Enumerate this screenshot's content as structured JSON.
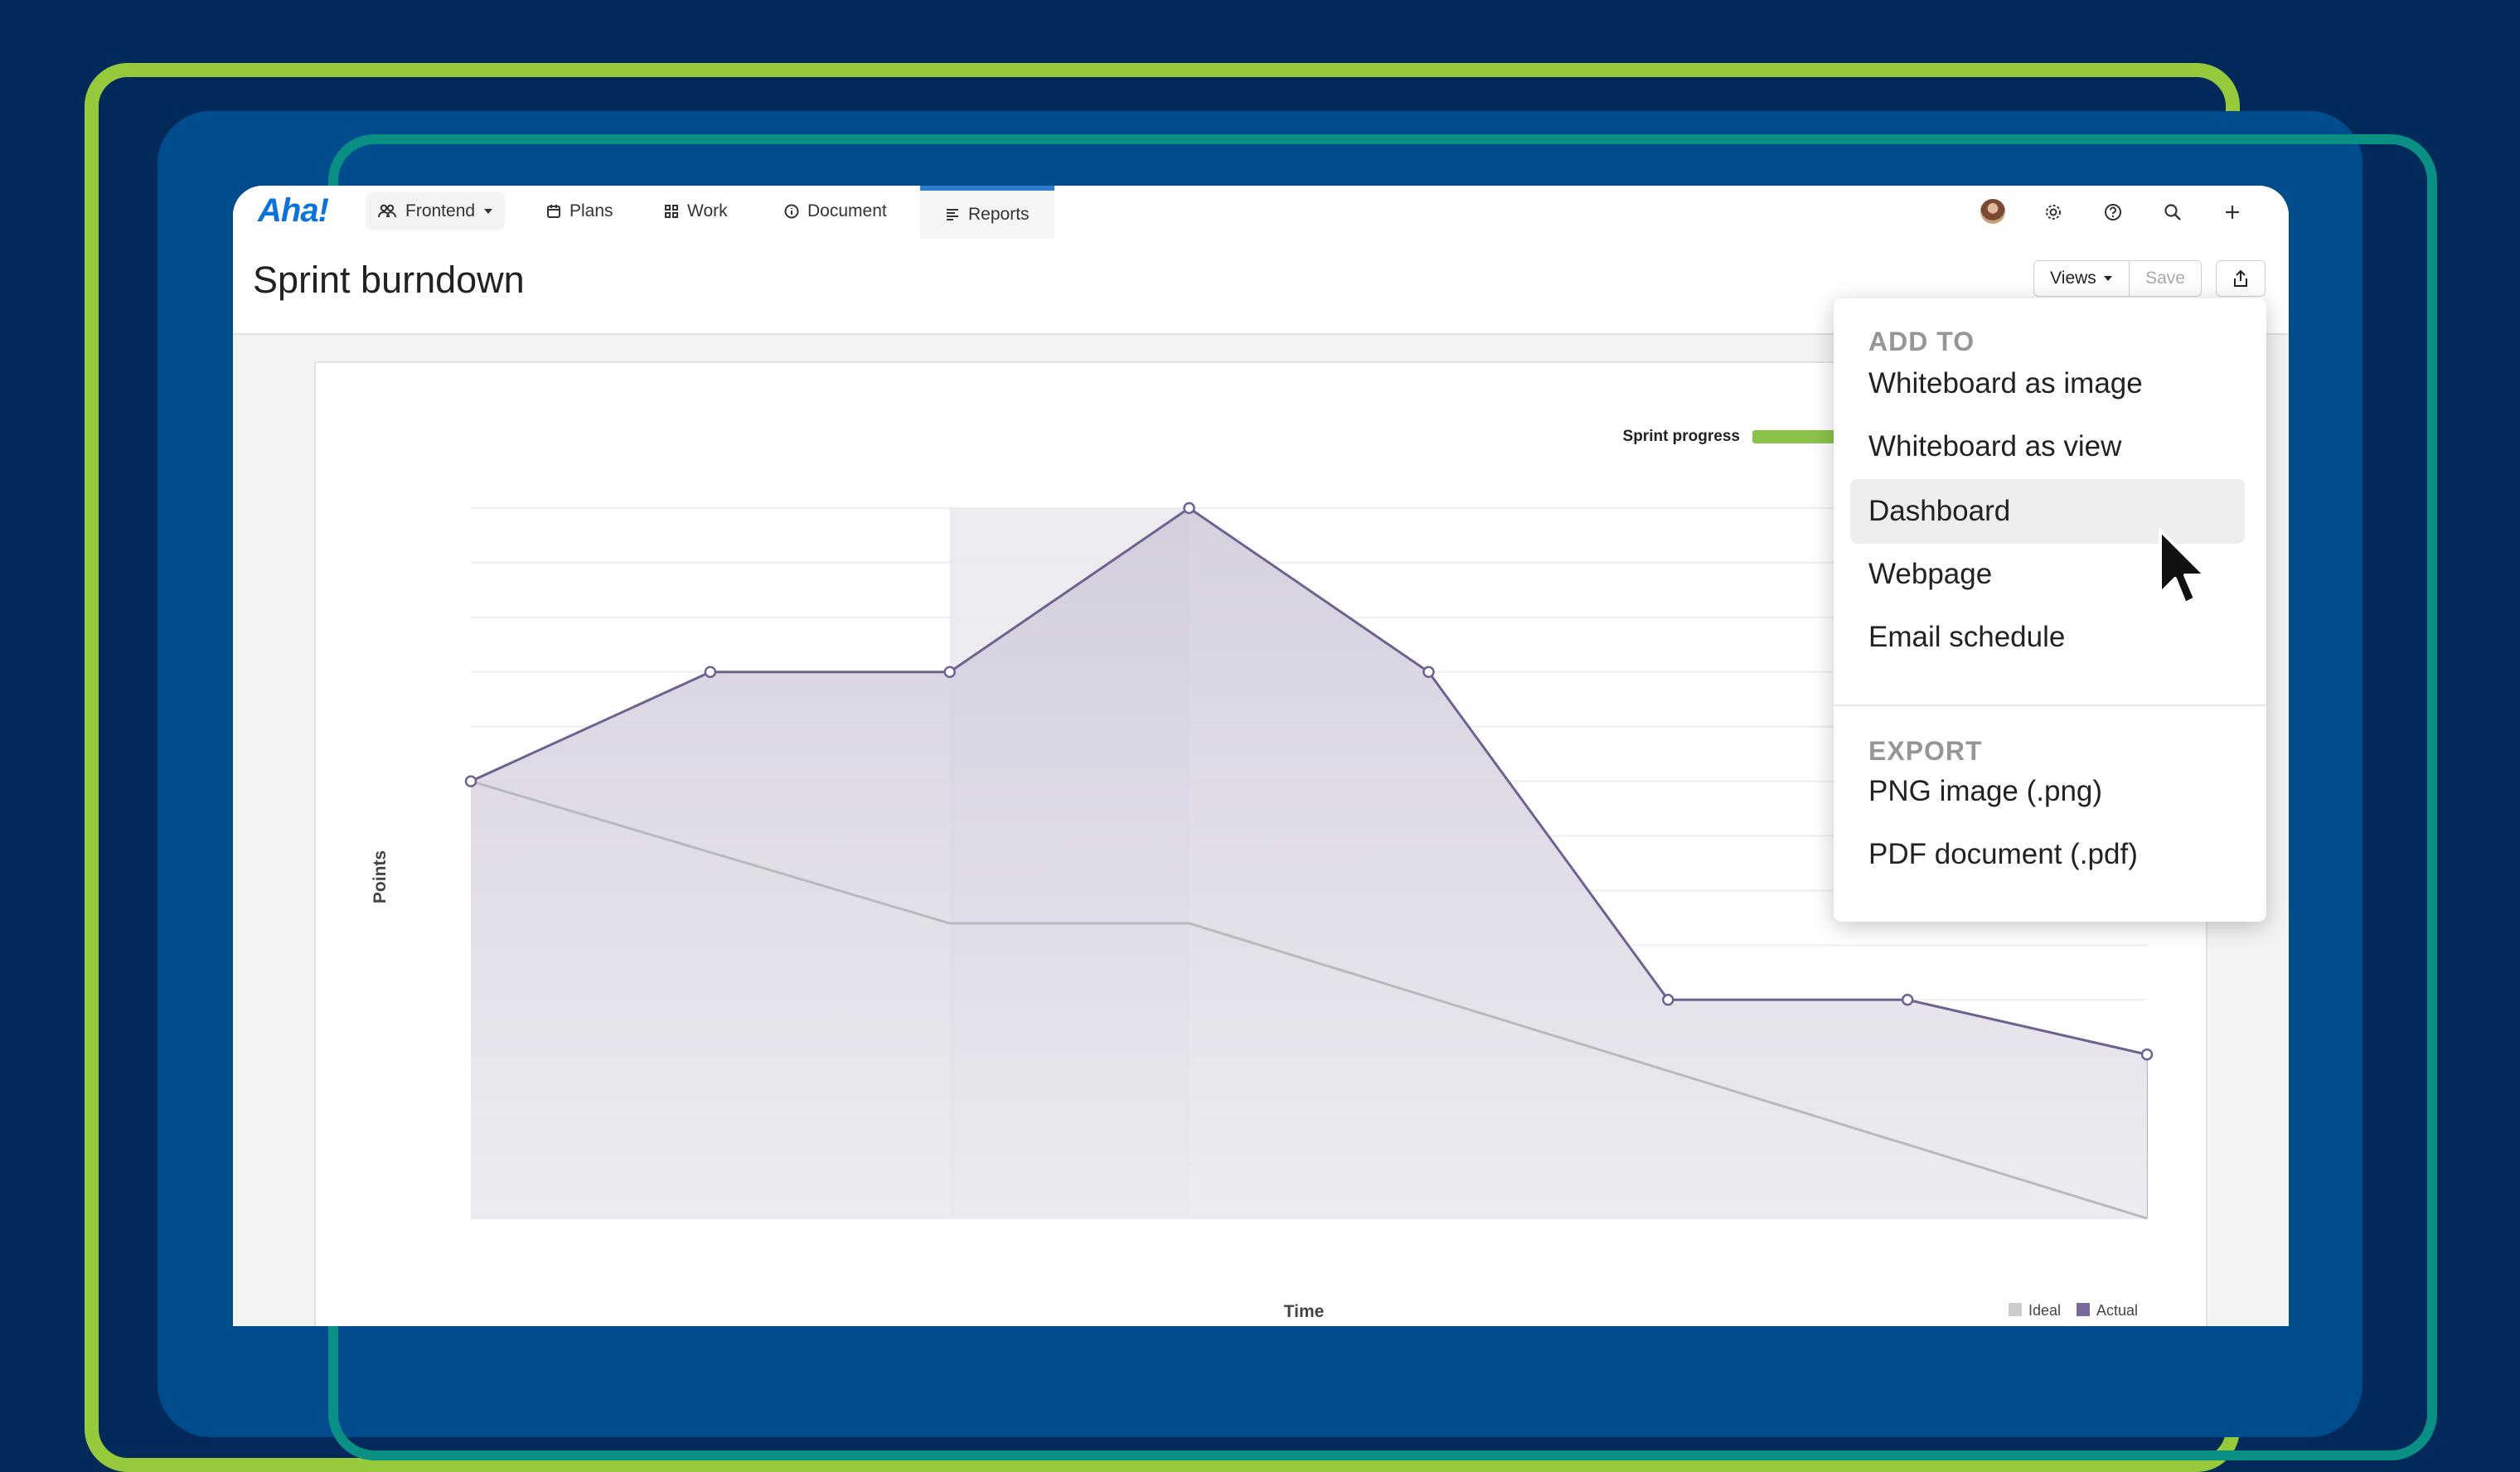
{
  "nav": {
    "logo": "Aha!",
    "workspace": "Frontend",
    "items": [
      {
        "id": "plans",
        "label": "Plans",
        "icon": "calendar-icon"
      },
      {
        "id": "work",
        "label": "Work",
        "icon": "grid-icon"
      },
      {
        "id": "document",
        "label": "Document",
        "icon": "info-circle-icon"
      },
      {
        "id": "reports",
        "label": "Reports",
        "icon": "report-icon",
        "active": true
      }
    ],
    "right_icons": [
      "user-avatar",
      "gear-icon",
      "help-icon",
      "search-icon",
      "plus-icon"
    ]
  },
  "header": {
    "title": "Sprint burndown",
    "views_label": "Views",
    "save_label": "Save"
  },
  "chart": {
    "legend_label": "Sprint progress",
    "legend_color": "#8bc34a",
    "ylabel": "Points",
    "xlabel": "Time",
    "series_legend": [
      {
        "name": "Ideal",
        "color": "#cccccc"
      },
      {
        "name": "Actual",
        "color": "#7a6a9c"
      }
    ]
  },
  "chart_data": {
    "type": "area",
    "title": "",
    "xlabel": "Time",
    "ylabel": "Points",
    "x": [
      0,
      1,
      2,
      3,
      4,
      5,
      6,
      7
    ],
    "series": [
      {
        "name": "Actual",
        "values": [
          8,
          10,
          10,
          13,
          10,
          4,
          4,
          3
        ]
      },
      {
        "name": "Ideal",
        "values": [
          8,
          null,
          5.4,
          5.4,
          null,
          null,
          null,
          0
        ]
      }
    ],
    "ylim": [
      0,
      13
    ],
    "grid": true,
    "legend": "bottom-right",
    "highlight_range": [
      2,
      3
    ]
  },
  "menu": {
    "add_heading": "ADD TO",
    "add_items": [
      "Whiteboard as image",
      "Whiteboard as view",
      "Dashboard",
      "Webpage",
      "Email schedule"
    ],
    "active_item": "Dashboard",
    "export_heading": "EXPORT",
    "export_items": [
      "PNG image (.png)",
      "PDF document (.pdf)"
    ]
  },
  "colors": {
    "background": "#012a5a",
    "accent_green": "#97c93d",
    "panel_blue": "#014c8c",
    "accent_teal": "#0a8f85",
    "brand_blue": "#0b73d9",
    "actual_line": "#6f6190"
  }
}
